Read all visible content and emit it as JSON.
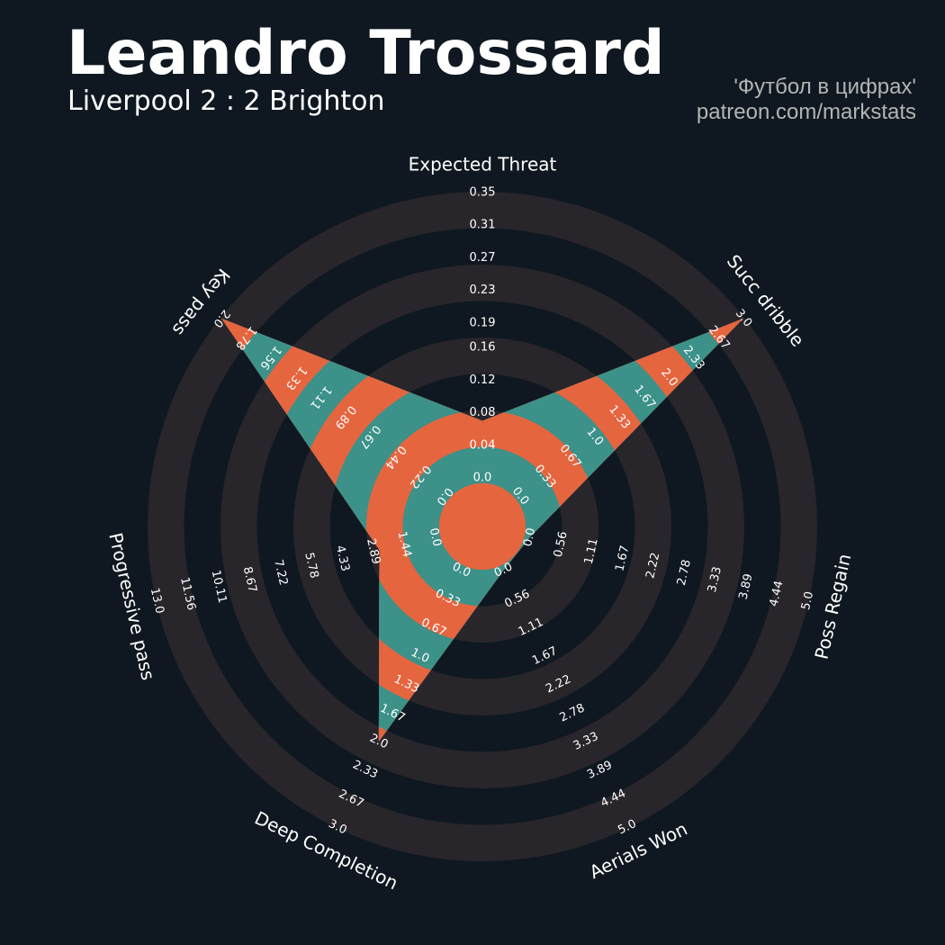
{
  "chart_data": {
    "type": "radar",
    "title": "Leandro Trossard",
    "subtitle": "Liverpool 2 : 2 Brighton",
    "credits": [
      "'Футбол в цифрах'",
      "patreon.com/markstats"
    ],
    "axes": [
      {
        "name": "Expected Threat",
        "lim": [
          0,
          0.35
        ],
        "ticks": [
          {
            "value": 0,
            "label": "0.0"
          },
          0.04,
          0.08,
          0.12,
          0.16,
          0.19,
          0.23,
          0.27,
          0.31,
          0.35
        ]
      },
      {
        "name": "Succ dribble",
        "lim": [
          0,
          3
        ],
        "ticks": [
          {
            "value": 0,
            "label": "0.0"
          },
          0.33,
          0.67,
          {
            "value": 1,
            "label": "1.0"
          },
          1.33,
          1.67,
          {
            "value": 2,
            "label": "2.0"
          },
          2.33,
          2.67,
          {
            "value": 3,
            "label": "3.0"
          }
        ]
      },
      {
        "name": "Poss Regain",
        "lim": [
          0,
          5
        ],
        "ticks": [
          {
            "value": 0,
            "label": "0.0"
          },
          0.56,
          1.11,
          1.67,
          2.22,
          2.78,
          3.33,
          3.89,
          4.44,
          {
            "value": 5,
            "label": "5.0"
          }
        ]
      },
      {
        "name": "Aerials Won",
        "lim": [
          0,
          5
        ],
        "ticks": [
          {
            "value": 0,
            "label": "0.0"
          },
          0.56,
          1.11,
          1.67,
          2.22,
          2.78,
          3.33,
          3.89,
          4.44,
          {
            "value": 5,
            "label": "5.0"
          }
        ]
      },
      {
        "name": "Deep Completion",
        "lim": [
          0,
          3
        ],
        "ticks": [
          {
            "value": 0,
            "label": "0.0"
          },
          0.33,
          0.67,
          {
            "value": 1,
            "label": "1.0"
          },
          1.33,
          1.67,
          {
            "value": 2,
            "label": "2.0"
          },
          2.33,
          2.67,
          {
            "value": 3,
            "label": "3.0"
          }
        ]
      },
      {
        "name": "Progressive pass",
        "lim": [
          0,
          13
        ],
        "ticks": [
          {
            "value": 0,
            "label": "0.0"
          },
          1.44,
          2.89,
          4.33,
          5.78,
          7.22,
          8.67,
          10.11,
          11.56,
          {
            "value": 13,
            "label": "13.0"
          }
        ]
      },
      {
        "name": "Key pass",
        "lim": [
          0,
          2
        ],
        "ticks": [
          {
            "value": 0,
            "label": "0.0"
          },
          0.22,
          0.44,
          0.67,
          0.89,
          1.11,
          1.33,
          1.56,
          1.78,
          {
            "value": 2,
            "label": "2.0"
          }
        ]
      }
    ],
    "series": [
      {
        "color": "#3c9189",
        "band_color": "#e5653f",
        "values": [
          0.07,
          3,
          0,
          0,
          2,
          2.6,
          2
        ]
      }
    ]
  }
}
